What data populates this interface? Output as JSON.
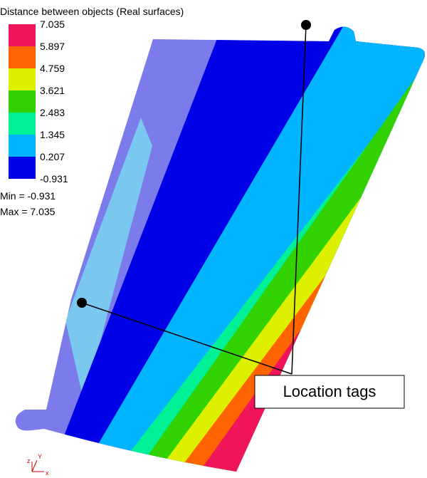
{
  "legend": {
    "title": "Distance between objects (Real surfaces)",
    "levels": [
      "7.035",
      "5.897",
      "4.759",
      "3.621",
      "2.483",
      "1.345",
      "0.207",
      "-0.931"
    ],
    "colors": [
      "#f0145a",
      "#ff6400",
      "#dcf000",
      "#32d200",
      "#00f096",
      "#00b4ff",
      "#0000e6"
    ],
    "min": "Min = -0.931",
    "max": "Max =  7.035"
  },
  "annotation": {
    "label": "Location tags"
  },
  "triad": {
    "z": "z",
    "y": "Y",
    "x": "x"
  }
}
